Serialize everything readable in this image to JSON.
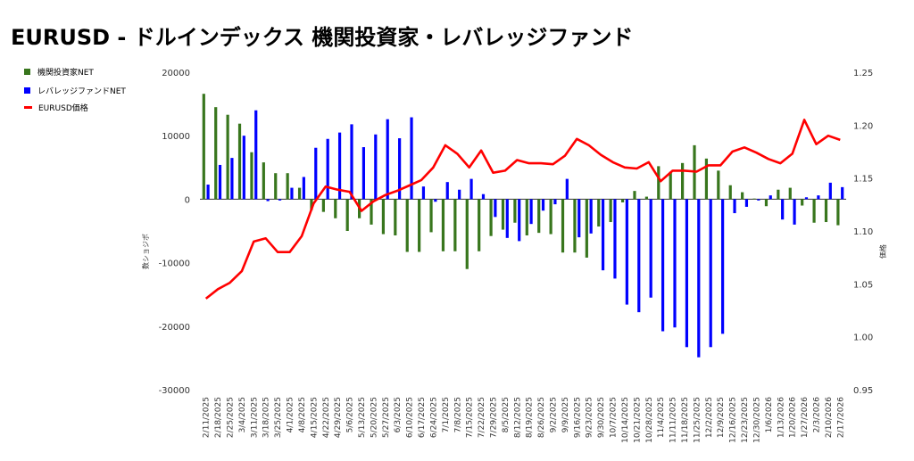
{
  "title": "EURUSD - ドルインデックス 機関投資家・レバレッジファンド",
  "legend": [
    {
      "label": "機関投資家NET",
      "color": "#38761d",
      "kind": "box"
    },
    {
      "label": "レバレッジファンドNET",
      "color": "#0000ff",
      "kind": "box"
    },
    {
      "label": "EURUSD価格",
      "color": "#ff0000",
      "kind": "line"
    }
  ],
  "chart_data": {
    "type": "bar",
    "ylabel": "数ショジポ",
    "y2label": "価格",
    "ylim": [
      -30000,
      20000
    ],
    "y2lim": [
      0.95,
      1.25
    ],
    "yticks": [
      "20000",
      "10000",
      "0",
      "-10000",
      "-20000",
      "-30000"
    ],
    "y2ticks": [
      "1.25",
      "1.20",
      "1.15",
      "1.10",
      "1.05",
      "1.00",
      "0.95"
    ],
    "grid": false,
    "legend_position": "top-left",
    "categories": [
      "2/11/2025",
      "2/18/2025",
      "2/25/2025",
      "3/4/2025",
      "3/11/2025",
      "3/18/2025",
      "3/25/2025",
      "4/1/2025",
      "4/8/2025",
      "4/15/2025",
      "4/22/2025",
      "4/29/2025",
      "5/6/2025",
      "5/13/2025",
      "5/20/2025",
      "5/27/2025",
      "6/3/2025",
      "6/10/2025",
      "6/17/2025",
      "6/24/2025",
      "7/1/2025",
      "7/8/2025",
      "7/15/2025",
      "7/22/2025",
      "7/29/2025",
      "8/5/2025",
      "8/12/2025",
      "8/19/2025",
      "8/26/2025",
      "9/2/2025",
      "9/9/2025",
      "9/16/2025",
      "9/23/2025",
      "9/30/2025",
      "10/7/2025",
      "10/14/2025",
      "10/21/2025",
      "10/28/2025",
      "11/4/2025",
      "11/11/2025",
      "11/18/2025",
      "11/25/2025",
      "12/2/2025",
      "12/9/2025",
      "12/16/2025",
      "12/23/2025",
      "12/30/2025",
      "1/6/2026",
      "1/13/2026",
      "1/20/2026",
      "1/27/2026",
      "2/3/2026",
      "2/10/2026",
      "2/17/2026"
    ],
    "series": [
      {
        "name": "機関投資家NET",
        "kind": "bar",
        "color": "#38761d",
        "values": [
          16600,
          14500,
          13300,
          11900,
          7400,
          5800,
          4100,
          4100,
          1800,
          -1700,
          -2000,
          -3000,
          -5000,
          -3000,
          -4000,
          -5500,
          -5700,
          -8300,
          -8300,
          -5200,
          -8200,
          -8200,
          -11000,
          -8200,
          -5800,
          -4800,
          -3700,
          -5700,
          -5300,
          -5500,
          -8400,
          -8400,
          -9200,
          -4300,
          -3600,
          -500,
          1300,
          400,
          5200,
          4300,
          5700,
          8500,
          6400,
          4500,
          2200,
          1100,
          100,
          -1100,
          1500,
          1800,
          -1000,
          -3700,
          -3600,
          -4100
        ]
      },
      {
        "name": "レバレッジファンドNET",
        "kind": "bar",
        "color": "#0000ff",
        "values": [
          2300,
          5400,
          6500,
          10000,
          14000,
          -300,
          -200,
          1800,
          3500,
          8100,
          9500,
          10500,
          11800,
          8200,
          10200,
          12600,
          9600,
          12900,
          2000,
          -400,
          2700,
          1500,
          3200,
          800,
          -2800,
          -6100,
          -6600,
          -3900,
          -1800,
          -800,
          3200,
          -6000,
          -5400,
          -11200,
          -12500,
          -16600,
          -17800,
          -15500,
          -20800,
          -20200,
          -23300,
          -24900,
          -23300,
          -21200,
          -2200,
          -1200,
          -200,
          600,
          -3200,
          -4000,
          300,
          600,
          2600,
          1900
        ]
      },
      {
        "name": "EURUSD価格",
        "kind": "line",
        "color": "#ff0000",
        "axis": "right",
        "values": [
          1.036,
          1.045,
          1.051,
          1.062,
          1.09,
          1.093,
          1.08,
          1.08,
          1.095,
          1.126,
          1.142,
          1.139,
          1.137,
          1.119,
          1.128,
          1.134,
          1.138,
          1.143,
          1.148,
          1.16,
          1.181,
          1.173,
          1.16,
          1.176,
          1.155,
          1.157,
          1.167,
          1.164,
          1.164,
          1.163,
          1.171,
          1.187,
          1.181,
          1.172,
          1.165,
          1.16,
          1.159,
          1.165,
          1.147,
          1.157,
          1.157,
          1.156,
          1.162,
          1.162,
          1.175,
          1.179,
          1.174,
          1.168,
          1.164,
          1.173,
          1.205,
          1.182,
          1.19,
          1.186
        ]
      }
    ]
  }
}
